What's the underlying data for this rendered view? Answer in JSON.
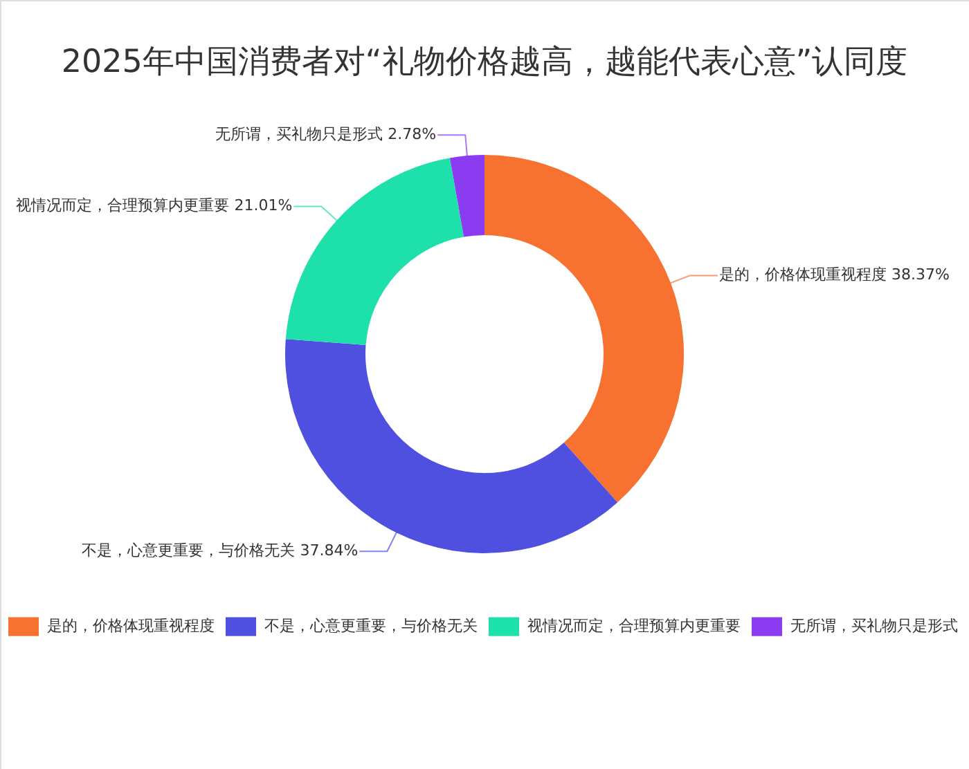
{
  "chart_data": {
    "type": "donut",
    "title": "2025年中国消费者对“礼物价格越高，越能代表心意”认同度",
    "categories": [
      "是的，价格体现重视程度",
      "不是，心意更重要，与价格无关",
      "视情况而定，合理预算内更重要",
      "无所谓，买礼物只是形式"
    ],
    "values": [
      38.37,
      37.84,
      21.01,
      2.78
    ],
    "colors": [
      "#f77130",
      "#5050e0",
      "#1ee0aa",
      "#8c3cf0"
    ],
    "value_labels": [
      "38.37%",
      "37.84%",
      "21.01%",
      "2.78%"
    ],
    "legend": "bottom"
  }
}
